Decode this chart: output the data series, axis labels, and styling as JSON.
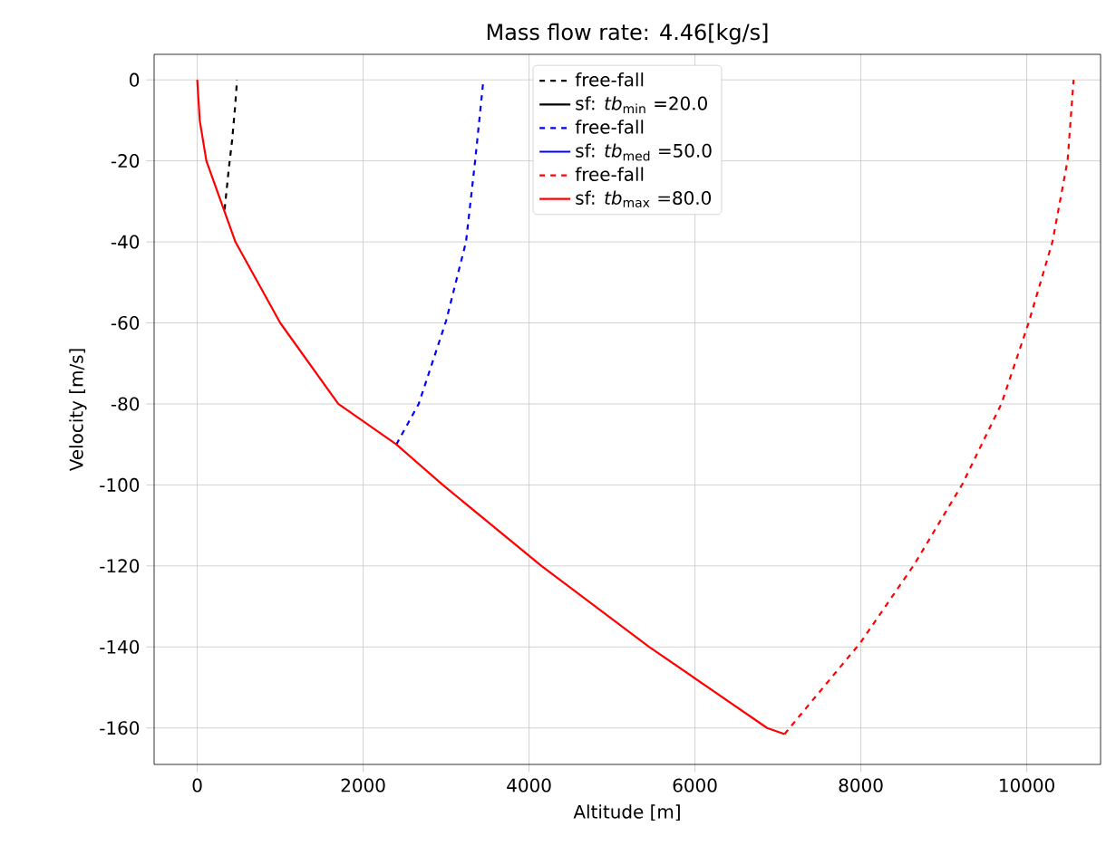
{
  "chart_data": {
    "type": "line",
    "title": "Mass flow rate: 4.46[kg/s]",
    "xlabel": "Altitude [m]",
    "ylabel": "Velocity [m/s]",
    "xlim": [
      -520,
      10890
    ],
    "ylim": [
      -169,
      6.3
    ],
    "xticks": [
      0,
      2000,
      4000,
      6000,
      8000,
      10000
    ],
    "yticks": [
      -160,
      -140,
      -120,
      -100,
      -80,
      -60,
      -40,
      -20,
      0
    ],
    "grid": true,
    "legend": "top",
    "marker": "none",
    "series": [
      {
        "name": "free-fall",
        "color": "#000000",
        "line_style": "dashed",
        "x": [
          330,
          380,
          420,
          455,
          480
        ],
        "values": [
          -32,
          -22,
          -15,
          -7,
          0
        ]
      },
      {
        "name": "sf: *tb*$_{min}$ =20.0",
        "color": "#000000",
        "line_style": "solid"
      },
      {
        "name": "free-fall",
        "color": "#0000ff",
        "line_style": "dashed",
        "x": [
          2400,
          2670,
          3000,
          3240,
          3350,
          3450
        ],
        "values": [
          -90,
          -80,
          -59.5,
          -40,
          -20,
          0
        ]
      },
      {
        "name": "sf: *tb*$_{med}$ =50.0",
        "color": "#0000ff",
        "line_style": "solid"
      },
      {
        "name": "free-fall",
        "color": "#ff0000",
        "line_style": "dashed",
        "x": [
          7080,
          7993,
          8645,
          9224,
          9696,
          10022,
          10311,
          10493,
          10565
        ],
        "values": [
          -161.5,
          -139,
          -119.6,
          -99.8,
          -79.9,
          -60,
          -39.9,
          -19.8,
          0
        ]
      },
      {
        "name": "sf: *tb*$_{max}$ =80.0",
        "color": "#ff0000",
        "line_style": "solid",
        "x": [
          0,
          30,
          110,
          460,
          1000,
          1700,
          2400,
          2960,
          4150,
          5450,
          6870,
          7080
        ],
        "values": [
          0,
          -10,
          -20,
          -40,
          -60,
          -80,
          -90,
          -100,
          -120,
          -140,
          -160,
          -161.5
        ]
      }
    ]
  }
}
